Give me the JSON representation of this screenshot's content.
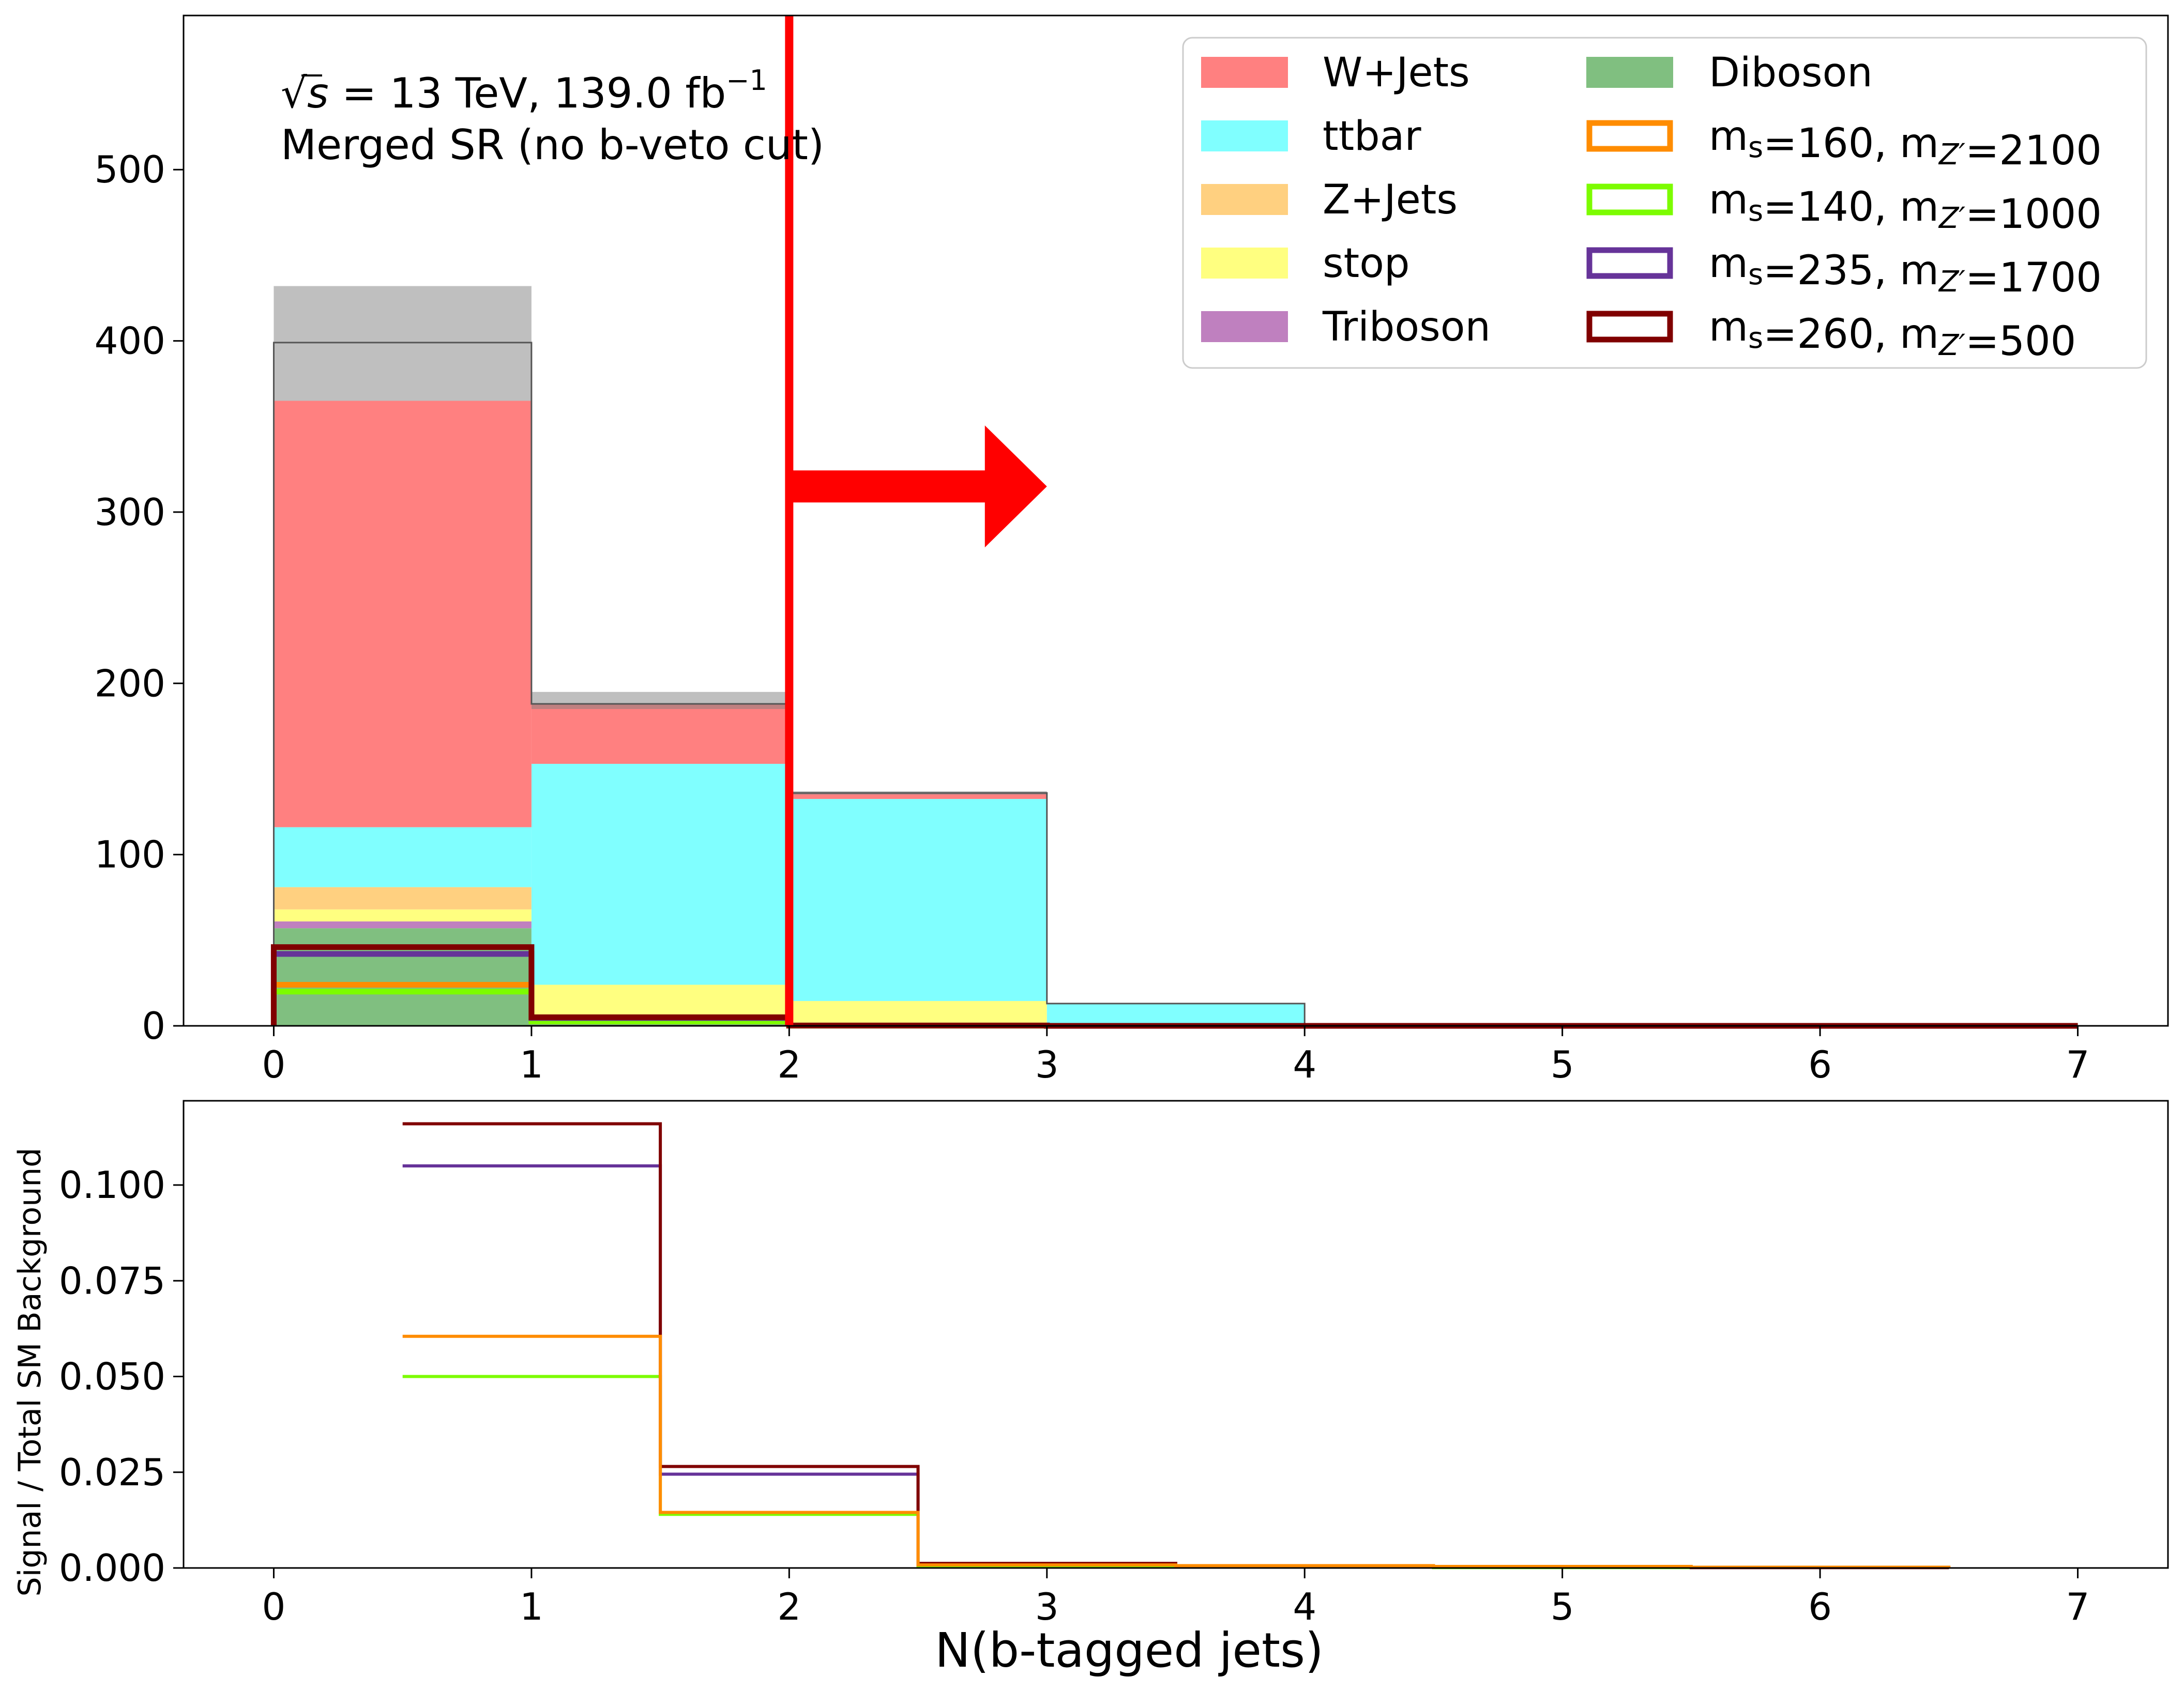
{
  "chart_data": [
    {
      "type": "histogram",
      "panel": "main",
      "xlabel": "",
      "ylabel": "",
      "xlim": [
        -0.35,
        7.35
      ],
      "ylim": [
        0,
        590
      ],
      "x_ticks": [
        "0",
        "1",
        "2",
        "3",
        "4",
        "5",
        "6",
        "7"
      ],
      "y_ticks": [
        "0",
        "100",
        "200",
        "300",
        "400",
        "500"
      ],
      "bin_edges": [
        0,
        1,
        2,
        3,
        4,
        5,
        6,
        7
      ],
      "stacked_series": [
        {
          "name": "Diboson",
          "color": "#80bf80",
          "values": [
            57,
            1,
            0.5,
            0,
            0,
            0,
            0
          ]
        },
        {
          "name": "Triboson",
          "color": "#bf80bf",
          "values": [
            4,
            0,
            0,
            0,
            0,
            0,
            0
          ]
        },
        {
          "name": "stop",
          "color": "#ffff80",
          "values": [
            7,
            23,
            14,
            0.5,
            0,
            0,
            0
          ]
        },
        {
          "name": "Z+Jets",
          "color": "#ffd080",
          "values": [
            13,
            0,
            0,
            0,
            0,
            0,
            0
          ]
        },
        {
          "name": "ttbar",
          "color": "#80ffff",
          "values": [
            35,
            129,
            118,
            12.5,
            1,
            0,
            0
          ]
        },
        {
          "name": "W+Jets",
          "color": "#ff8080",
          "values": [
            249,
            35,
            3,
            0,
            0,
            0,
            0
          ]
        }
      ],
      "uncertainty_band": {
        "color": "#808080",
        "low": [
          365,
          185,
          135,
          13,
          1,
          0,
          0
        ],
        "high": [
          432,
          195,
          137,
          13,
          1,
          0,
          0
        ]
      },
      "total_line": [
        399,
        188,
        136,
        13,
        1,
        0,
        0
      ],
      "signal_series": [
        {
          "name": "m_s=160, m_Z'=2100",
          "color": "#ff8c00",
          "values": [
            24,
            2.6,
            0.1,
            0,
            0,
            0,
            0
          ]
        },
        {
          "name": "m_s=140, m_Z'=1000",
          "color": "#7cfc00",
          "values": [
            20,
            2.6,
            0.1,
            0,
            0,
            0,
            0
          ]
        },
        {
          "name": "m_s=235, m_Z'=1700",
          "color": "#663399",
          "values": [
            42,
            4.6,
            0.2,
            0,
            0,
            0,
            0
          ]
        },
        {
          "name": "m_s=260, m_Z'=500",
          "color": "#800000",
          "values": [
            46,
            5,
            0.2,
            0,
            0,
            0,
            0
          ]
        }
      ],
      "cut_line": {
        "x": 2,
        "direction": "right",
        "color": "#ff0000"
      },
      "annotation": {
        "energy_prefix": "√",
        "energy_symbol": "s",
        "energy_text": "= 13 TeV, 139.0 fb",
        "energy_exp": "−1",
        "region": "Merged SR (no b-veto cut)"
      },
      "legend": {
        "placement": "top-right",
        "col1": [
          {
            "label": "W+Jets",
            "color": "#ff8080",
            "kind": "fill"
          },
          {
            "label": "ttbar",
            "color": "#80ffff",
            "kind": "fill"
          },
          {
            "label": "Z+Jets",
            "color": "#ffd080",
            "kind": "fill"
          },
          {
            "label": "stop",
            "color": "#ffff80",
            "kind": "fill"
          },
          {
            "label": "Triboson",
            "color": "#bf80bf",
            "kind": "fill"
          }
        ],
        "col2": [
          {
            "label": "Diboson",
            "color": "#80bf80",
            "kind": "fill"
          },
          {
            "label": "",
            "color": "#ff8c00",
            "kind": "line",
            "m_s": "160",
            "m_z": "2100"
          },
          {
            "label": "",
            "color": "#7cfc00",
            "kind": "line",
            "m_s": "140",
            "m_z": "1000"
          },
          {
            "label": "",
            "color": "#663399",
            "kind": "line",
            "m_s": "235",
            "m_z": "1700"
          },
          {
            "label": "",
            "color": "#800000",
            "kind": "line",
            "m_s": "260",
            "m_z": "500"
          }
        ]
      }
    },
    {
      "type": "step",
      "panel": "ratio",
      "xlabel": "N(b-tagged jets)",
      "ylabel": "Signal / Total SM Background",
      "xlim": [
        -0.35,
        7.35
      ],
      "ylim": [
        0,
        0.122
      ],
      "x_ticks": [
        "0",
        "1",
        "2",
        "3",
        "4",
        "5",
        "6",
        "7"
      ],
      "y_ticks": [
        "0.000",
        "0.025",
        "0.050",
        "0.075",
        "0.100"
      ],
      "x": [
        0.5,
        1.5,
        2.5,
        3.5,
        4.5,
        5.5,
        6.5
      ],
      "series": [
        {
          "name": "m_s=140, m_Z'=1000",
          "color": "#7cfc00",
          "values": [
            0.05,
            0.014,
            0.0005,
            0.0003,
            0.0001,
            0.0001,
            0.0001
          ]
        },
        {
          "name": "m_s=235, m_Z'=1700",
          "color": "#663399",
          "values": [
            0.105,
            0.0245,
            0.001,
            0.0005,
            0.0002,
            0.0001,
            0.0001
          ]
        },
        {
          "name": "m_s=260, m_Z'=500",
          "color": "#800000",
          "values": [
            0.116,
            0.0265,
            0.0012,
            0.0005,
            0.0002,
            0.0001,
            0.0001
          ]
        },
        {
          "name": "m_s=160, m_Z'=2100",
          "color": "#ff8c00",
          "values": [
            0.0605,
            0.0145,
            0.0008,
            0.0006,
            0.0004,
            0.0002,
            0.0001
          ]
        }
      ]
    }
  ]
}
